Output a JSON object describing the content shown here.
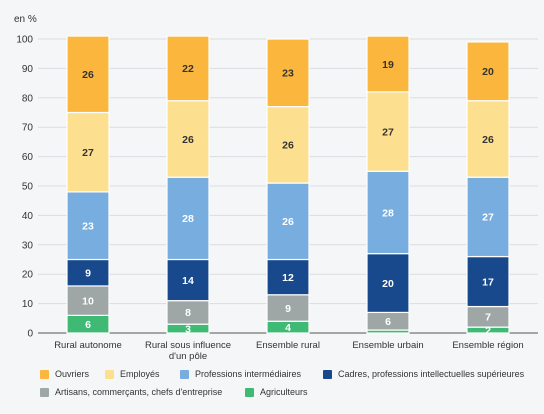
{
  "chart_data": {
    "type": "bar",
    "stacked": true,
    "unit_label": "en %",
    "ylim": [
      0,
      100
    ],
    "yticks": [
      "0",
      "10",
      "20",
      "30",
      "40",
      "50",
      "60",
      "70",
      "80",
      "90",
      "100"
    ],
    "grid": true,
    "legend_position": "bottom",
    "categories": [
      "Rural autonome",
      "Rural sous influence d'un pôle",
      "Ensemble rural",
      "Ensemble urbain",
      "Ensemble région"
    ],
    "category_lines": [
      [
        "Rural autonome"
      ],
      [
        "Rural sous influence",
        "d'un pôle"
      ],
      [
        "Ensemble rural"
      ],
      [
        "Ensemble urbain"
      ],
      [
        "Ensemble région"
      ]
    ],
    "series": [
      {
        "name": "Agriculteurs",
        "color": "#3fba74",
        "label_color": "#ffffff",
        "values": [
          6,
          3,
          4,
          1,
          2
        ],
        "labels": [
          "6",
          "3",
          "4",
          "",
          "2"
        ]
      },
      {
        "name": "Artisans, commerçants, chefs d'entreprise",
        "color": "#9ea7a6",
        "label_color": "#ffffff",
        "values": [
          10,
          8,
          9,
          6,
          7
        ],
        "labels": [
          "10",
          "8",
          "9",
          "6",
          "7"
        ]
      },
      {
        "name": "Cadres, professions intellectuelles supérieures",
        "color": "#17498c",
        "label_color": "#ffffff",
        "values": [
          9,
          14,
          12,
          20,
          17
        ],
        "labels": [
          "9",
          "14",
          "12",
          "20",
          "17"
        ]
      },
      {
        "name": "Professions intermédiaires",
        "color": "#78ade0",
        "label_color": "#ffffff",
        "values": [
          23,
          28,
          26,
          28,
          27
        ],
        "labels": [
          "23",
          "28",
          "26",
          "28",
          "27"
        ]
      },
      {
        "name": "Employés",
        "color": "#fde08f",
        "label_color": "#333333",
        "values": [
          27,
          26,
          26,
          27,
          26
        ],
        "labels": [
          "27",
          "26",
          "26",
          "27",
          "26"
        ]
      },
      {
        "name": "Ouvriers",
        "color": "#fbb63d",
        "label_color": "#333333",
        "values": [
          26,
          22,
          23,
          19,
          20
        ],
        "labels": [
          "26",
          "22",
          "23",
          "19",
          "20"
        ]
      }
    ],
    "legend_order": [
      "Ouvriers",
      "Employés",
      "Professions intermédiaires",
      "Cadres, professions intellectuelles supérieures",
      "Artisans, commerçants, chefs d'entreprise",
      "Agriculteurs"
    ]
  }
}
